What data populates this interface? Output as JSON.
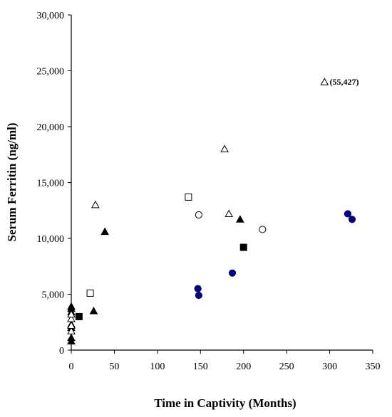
{
  "chart_data": {
    "type": "scatter",
    "title": "",
    "xlabel": "Time in Captivity (Months)",
    "ylabel": "Serum Ferritin (ng/ml)",
    "xlim": [
      0,
      350
    ],
    "ylim": [
      0,
      30000
    ],
    "x_ticks": [
      0,
      50,
      100,
      150,
      200,
      250,
      300,
      350
    ],
    "y_ticks": [
      0,
      5000,
      10000,
      15000,
      20000,
      25000,
      30000
    ],
    "x_tick_labels": [
      "0",
      "50",
      "100",
      "150",
      "200",
      "250",
      "300",
      "350"
    ],
    "y_tick_labels": [
      "0",
      "5,000",
      "10,000",
      "15,000",
      "20,000",
      "25,000",
      "30,000"
    ],
    "grid": false,
    "legend": "none",
    "series": [
      {
        "marker": "filled-triangle",
        "color": "#000000",
        "points": [
          {
            "x": 0,
            "y": 800
          },
          {
            "x": 0,
            "y": 1100
          },
          {
            "x": 0,
            "y": 2000
          },
          {
            "x": 0,
            "y": 2300
          },
          {
            "x": 0,
            "y": 3400
          },
          {
            "x": 0,
            "y": 3700
          },
          {
            "x": 0,
            "y": 3900
          },
          {
            "x": 26,
            "y": 3500
          },
          {
            "x": 39,
            "y": 10600
          },
          {
            "x": 196,
            "y": 11700
          }
        ]
      },
      {
        "marker": "open-triangle",
        "color": "#000000",
        "points": [
          {
            "x": 0,
            "y": 1700
          },
          {
            "x": 0,
            "y": 2200
          },
          {
            "x": 0,
            "y": 2800
          },
          {
            "x": 0,
            "y": 3200
          },
          {
            "x": 28,
            "y": 13000
          },
          {
            "x": 178,
            "y": 18000
          },
          {
            "x": 183,
            "y": 12200
          },
          {
            "x": 294,
            "y": 24000
          }
        ]
      },
      {
        "marker": "filled-square",
        "color": "#000000",
        "points": [
          {
            "x": 9,
            "y": 3000
          },
          {
            "x": 200,
            "y": 9200
          }
        ]
      },
      {
        "marker": "open-square",
        "color": "#000000",
        "points": [
          {
            "x": 22,
            "y": 5100
          },
          {
            "x": 136,
            "y": 13700
          }
        ]
      },
      {
        "marker": "open-circle",
        "color": "#000000",
        "points": [
          {
            "x": 148,
            "y": 12100
          },
          {
            "x": 222,
            "y": 10800
          }
        ]
      },
      {
        "marker": "filled-circle",
        "color": "#000080",
        "points": [
          {
            "x": 147,
            "y": 5500
          },
          {
            "x": 148,
            "y": 4900
          },
          {
            "x": 187,
            "y": 6900
          },
          {
            "x": 321,
            "y": 12200
          },
          {
            "x": 326,
            "y": 11700
          }
        ]
      }
    ],
    "annotations": [
      {
        "text": "(55,427)",
        "x": 300,
        "y": 24000
      }
    ]
  }
}
